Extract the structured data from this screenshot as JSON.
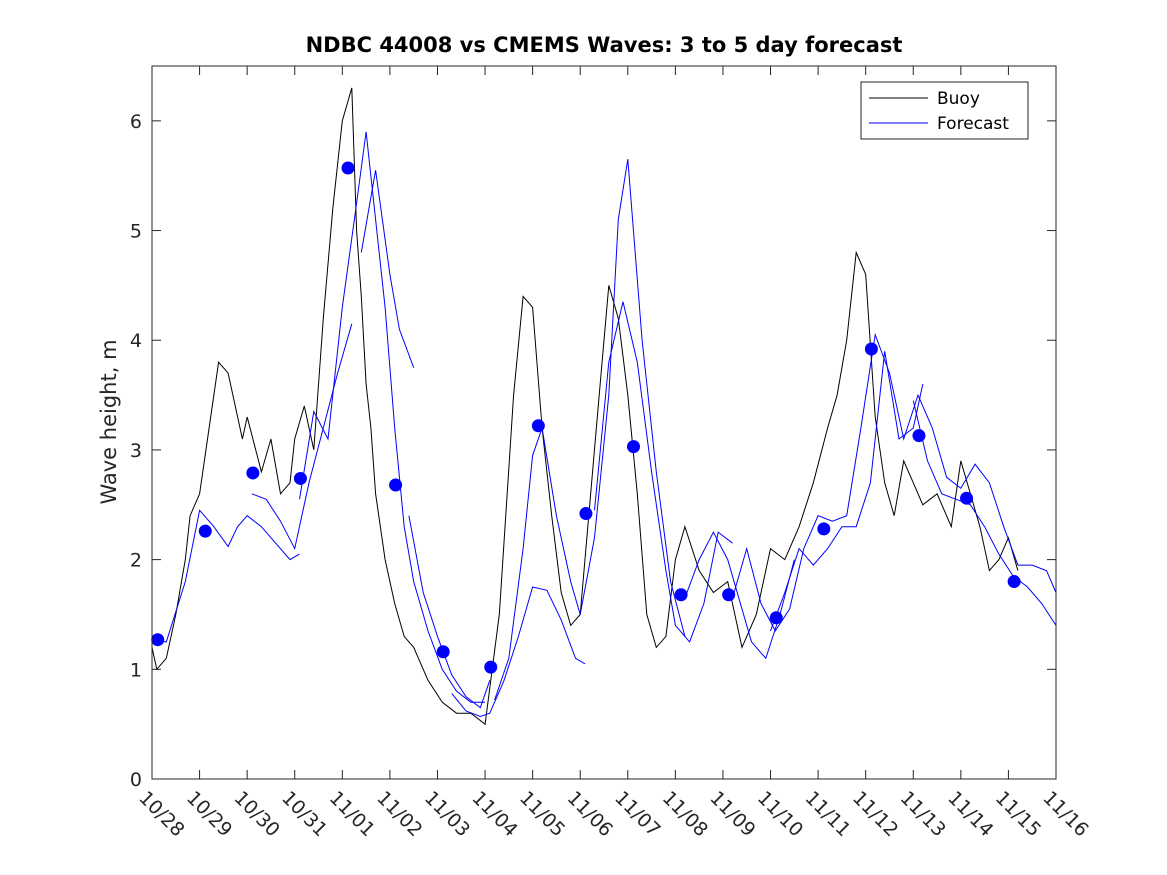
{
  "chart_data": {
    "type": "line",
    "title": "NDBC 44008 vs CMEMS Waves: 3 to 5 day forecast",
    "xlabel": "",
    "ylabel": "Wave height, m",
    "xlim": [
      0,
      19
    ],
    "ylim": [
      0,
      6.5
    ],
    "x_tick_labels": [
      "10/28",
      "10/29",
      "10/30",
      "10/31",
      "11/01",
      "11/02",
      "11/03",
      "11/04",
      "11/05",
      "11/06",
      "11/07",
      "11/08",
      "11/09",
      "11/10",
      "11/11",
      "11/12",
      "11/13",
      "11/14",
      "11/15",
      "11/16"
    ],
    "y_ticks": [
      0,
      1,
      2,
      3,
      4,
      5,
      6
    ],
    "legend": {
      "position": "top-right",
      "entries": [
        "Buoy",
        "Forecast"
      ]
    },
    "colors": {
      "buoy": "#000000",
      "forecast": "#0000ff",
      "markers": "#0000ff"
    },
    "series": [
      {
        "name": "Buoy",
        "x": [
          0,
          0.1,
          0.3,
          0.5,
          0.7,
          0.8,
          1.0,
          1.2,
          1.4,
          1.6,
          1.9,
          2.0,
          2.3,
          2.5,
          2.7,
          2.9,
          3.0,
          3.2,
          3.4,
          3.6,
          3.8,
          4.0,
          4.2,
          4.3,
          4.4,
          4.5,
          4.6,
          4.7,
          4.9,
          5.1,
          5.3,
          5.5,
          5.8,
          6.1,
          6.4,
          6.7,
          7.0,
          7.3,
          7.6,
          7.8,
          8.0,
          8.2,
          8.4,
          8.6,
          8.8,
          9.0,
          9.2,
          9.4,
          9.6,
          9.8,
          10.0,
          10.2,
          10.4,
          10.6,
          10.8,
          11.0,
          11.2,
          11.5,
          11.8,
          12.1,
          12.4,
          12.7,
          13.0,
          13.3,
          13.6,
          13.9,
          14.2,
          14.4,
          14.6,
          14.8,
          15.0,
          15.2,
          15.4,
          15.6,
          15.8,
          16.0,
          16.2,
          16.5,
          16.8,
          17.0,
          17.2,
          17.4,
          17.6,
          17.8,
          18.0,
          18.2
        ],
        "values": [
          1.2,
          1.0,
          1.1,
          1.5,
          2.0,
          2.4,
          2.6,
          3.2,
          3.8,
          3.7,
          3.1,
          3.3,
          2.8,
          3.1,
          2.6,
          2.7,
          3.1,
          3.4,
          3.0,
          4.2,
          5.2,
          6.0,
          6.3,
          5.0,
          4.4,
          3.6,
          3.2,
          2.6,
          2.0,
          1.6,
          1.3,
          1.2,
          0.9,
          0.7,
          0.6,
          0.6,
          0.5,
          1.5,
          3.5,
          4.4,
          4.3,
          3.2,
          2.4,
          1.7,
          1.4,
          1.5,
          2.5,
          3.5,
          4.5,
          4.2,
          3.5,
          2.6,
          1.5,
          1.2,
          1.3,
          2.0,
          2.3,
          1.9,
          1.7,
          1.8,
          1.2,
          1.5,
          2.1,
          2.0,
          2.3,
          2.7,
          3.2,
          3.5,
          4.0,
          4.8,
          4.6,
          3.3,
          2.7,
          2.4,
          2.9,
          2.7,
          2.5,
          2.6,
          2.3,
          2.9,
          2.6,
          2.3,
          1.9,
          2.0,
          2.2,
          1.9
        ]
      },
      {
        "name": "Forecast",
        "segments": [
          {
            "x": [
              0.0,
              0.3,
              0.7,
              1.0,
              1.3,
              1.6,
              1.8,
              2.0,
              2.3,
              2.6,
              2.9,
              3.1
            ],
            "values": [
              1.27,
              1.25,
              1.8,
              2.45,
              2.3,
              2.12,
              2.3,
              2.4,
              2.3,
              2.15,
              2.0,
              2.05
            ]
          },
          {
            "x": [
              2.1,
              2.4,
              2.7,
              3.0,
              3.3,
              3.6,
              3.9,
              4.2
            ],
            "values": [
              2.6,
              2.55,
              2.35,
              2.1,
              2.7,
              3.2,
              3.7,
              4.15
            ]
          },
          {
            "x": [
              3.1,
              3.4,
              3.7,
              4.0,
              4.3,
              4.5,
              4.7,
              4.9,
              5.1,
              5.3,
              5.5,
              5.8,
              6.1,
              6.4,
              6.7,
              7.0
            ],
            "values": [
              2.55,
              3.35,
              3.1,
              4.3,
              5.25,
              5.9,
              5.1,
              4.3,
              3.2,
              2.3,
              1.8,
              1.35,
              1.0,
              0.8,
              0.7,
              0.7
            ]
          },
          {
            "x": [
              4.4,
              4.7,
              5.0,
              5.2,
              5.5
            ],
            "values": [
              4.8,
              5.55,
              4.6,
              4.1,
              3.75
            ]
          },
          {
            "x": [
              5.4,
              5.7,
              6.0,
              6.3,
              6.6,
              6.9,
              7.1
            ],
            "values": [
              2.4,
              1.7,
              1.3,
              0.95,
              0.75,
              0.65,
              0.9
            ]
          },
          {
            "x": [
              6.3,
              6.6,
              6.9,
              7.1,
              7.4,
              7.7,
              8.0,
              8.3,
              8.6,
              8.9,
              9.1
            ],
            "values": [
              0.78,
              0.62,
              0.57,
              0.6,
              0.9,
              1.3,
              1.75,
              1.72,
              1.45,
              1.1,
              1.05
            ]
          },
          {
            "x": [
              7.2,
              7.5,
              7.8,
              8.0,
              8.2,
              8.5,
              8.8,
              9.0,
              9.3,
              9.6,
              9.8,
              10.0,
              10.3,
              10.6,
              10.9,
              11.2
            ],
            "values": [
              0.72,
              1.1,
              2.1,
              2.95,
              3.2,
              2.4,
              1.8,
              1.5,
              2.2,
              3.5,
              5.1,
              5.65,
              4.0,
              2.8,
              1.8,
              1.3
            ]
          },
          {
            "x": [
              9.3,
              9.6,
              9.9,
              10.2,
              10.5,
              10.8,
              11.0,
              11.3,
              11.6,
              11.9,
              12.2
            ],
            "values": [
              2.45,
              3.8,
              4.35,
              3.8,
              2.8,
              1.9,
              1.4,
              1.25,
              1.6,
              2.25,
              2.15
            ]
          },
          {
            "x": [
              11.2,
              11.5,
              11.8,
              12.1,
              12.4,
              12.6,
              12.9,
              13.2,
              13.5
            ],
            "values": [
              1.65,
              2.0,
              2.25,
              2.0,
              1.55,
              1.25,
              1.1,
              1.5,
              2.0
            ]
          },
          {
            "x": [
              12.2,
              12.5,
              12.8,
              13.1,
              13.4,
              13.7,
              14.0,
              14.3,
              14.6,
              14.9,
              15.2,
              15.5,
              15.8,
              16.1,
              16.4,
              16.7,
              17.0,
              17.3,
              17.6,
              17.9,
              18.2,
              18.5,
              18.8,
              19.0
            ],
            "values": [
              1.65,
              2.1,
              1.6,
              1.35,
              1.55,
              2.1,
              2.4,
              2.35,
              2.4,
              3.2,
              4.05,
              3.7,
              3.1,
              3.5,
              3.2,
              2.75,
              2.65,
              2.87,
              2.7,
              2.3,
              1.95,
              1.95,
              1.9,
              1.7
            ]
          },
          {
            "x": [
              13.0,
              13.3,
              13.6,
              13.9,
              14.2,
              14.5,
              14.8,
              15.1,
              15.4,
              15.7,
              16.0,
              16.2
            ],
            "values": [
              1.35,
              1.7,
              2.1,
              1.95,
              2.1,
              2.3,
              2.3,
              2.7,
              3.9,
              3.1,
              3.2,
              3.6
            ]
          },
          {
            "x": [
              16.0,
              16.3,
              16.6,
              16.9,
              17.2,
              17.5,
              17.8,
              18.1,
              18.4,
              18.7,
              19.0
            ],
            "values": [
              3.45,
              2.9,
              2.6,
              2.55,
              2.5,
              2.3,
              2.05,
              1.85,
              1.75,
              1.6,
              1.4
            ]
          }
        ]
      },
      {
        "name": "Forecast start points",
        "x": [
          0.12,
          1.12,
          2.12,
          3.12,
          4.12,
          5.12,
          6.12,
          7.12,
          8.12,
          9.12,
          10.12,
          11.12,
          12.12,
          13.12,
          14.12,
          15.12,
          16.12,
          17.12,
          18.12
        ],
        "values": [
          1.27,
          2.26,
          2.79,
          2.74,
          5.57,
          2.68,
          1.16,
          1.02,
          3.22,
          2.42,
          3.03,
          1.68,
          1.68,
          1.47,
          2.28,
          3.92,
          3.13,
          2.56,
          1.8
        ]
      }
    ]
  }
}
